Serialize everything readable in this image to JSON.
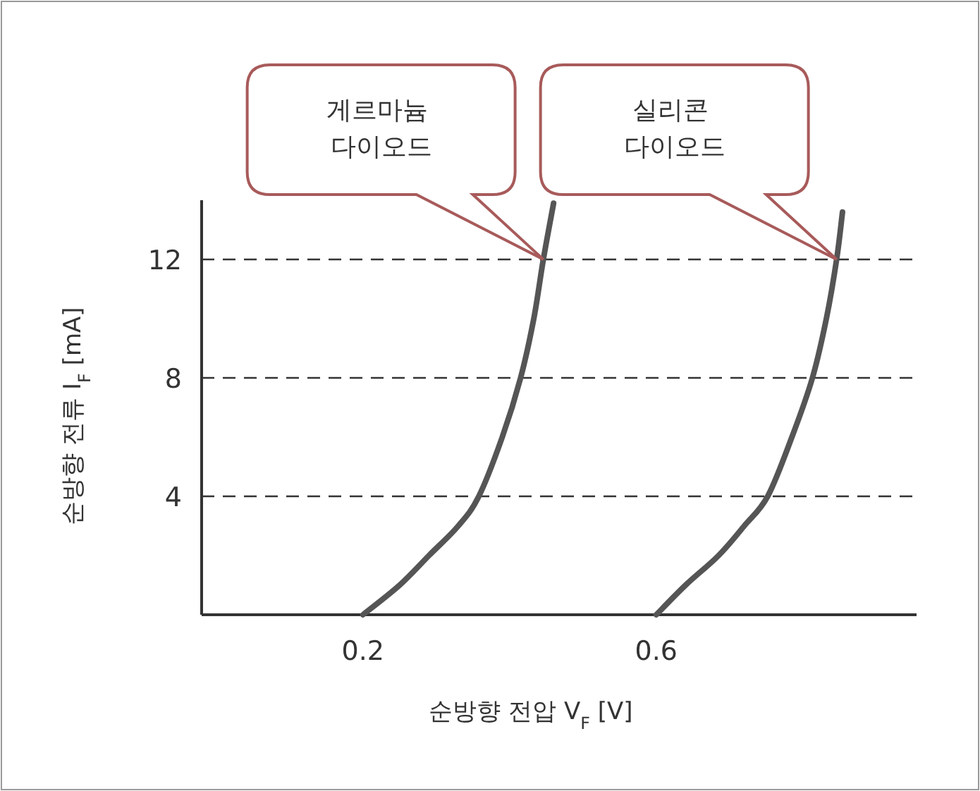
{
  "chart_data": {
    "type": "line",
    "xlabel": "순방향 전압 V$_{F}$ [V]",
    "ylabel": "순방향 전류 I$_{F}$ [mA]",
    "xlim": [
      -0.02,
      0.955
    ],
    "ylim": [
      0,
      14
    ],
    "xticks": [
      0.2,
      0.6
    ],
    "yticks": [
      4,
      8,
      12
    ],
    "grid": "y",
    "marker": "none",
    "line_style": "solid",
    "series": [
      {
        "color": "#555555",
        "x": [
          0.2,
          0.25,
          0.29,
          0.33,
          0.358,
          0.39,
          0.415,
          0.433,
          0.446,
          0.46
        ],
        "values": [
          0,
          1,
          2,
          3,
          4,
          6,
          8,
          10,
          12,
          13.9
        ]
      },
      {
        "color": "#555555",
        "x": [
          0.6,
          0.64,
          0.685,
          0.72,
          0.752,
          0.785,
          0.813,
          0.832,
          0.846,
          0.854
        ],
        "values": [
          0,
          1,
          2,
          3,
          4,
          6,
          8,
          10,
          12,
          13.6
        ]
      }
    ],
    "annotations": [
      "게르마늄 다이오드",
      "실리콘 다이오드"
    ]
  }
}
